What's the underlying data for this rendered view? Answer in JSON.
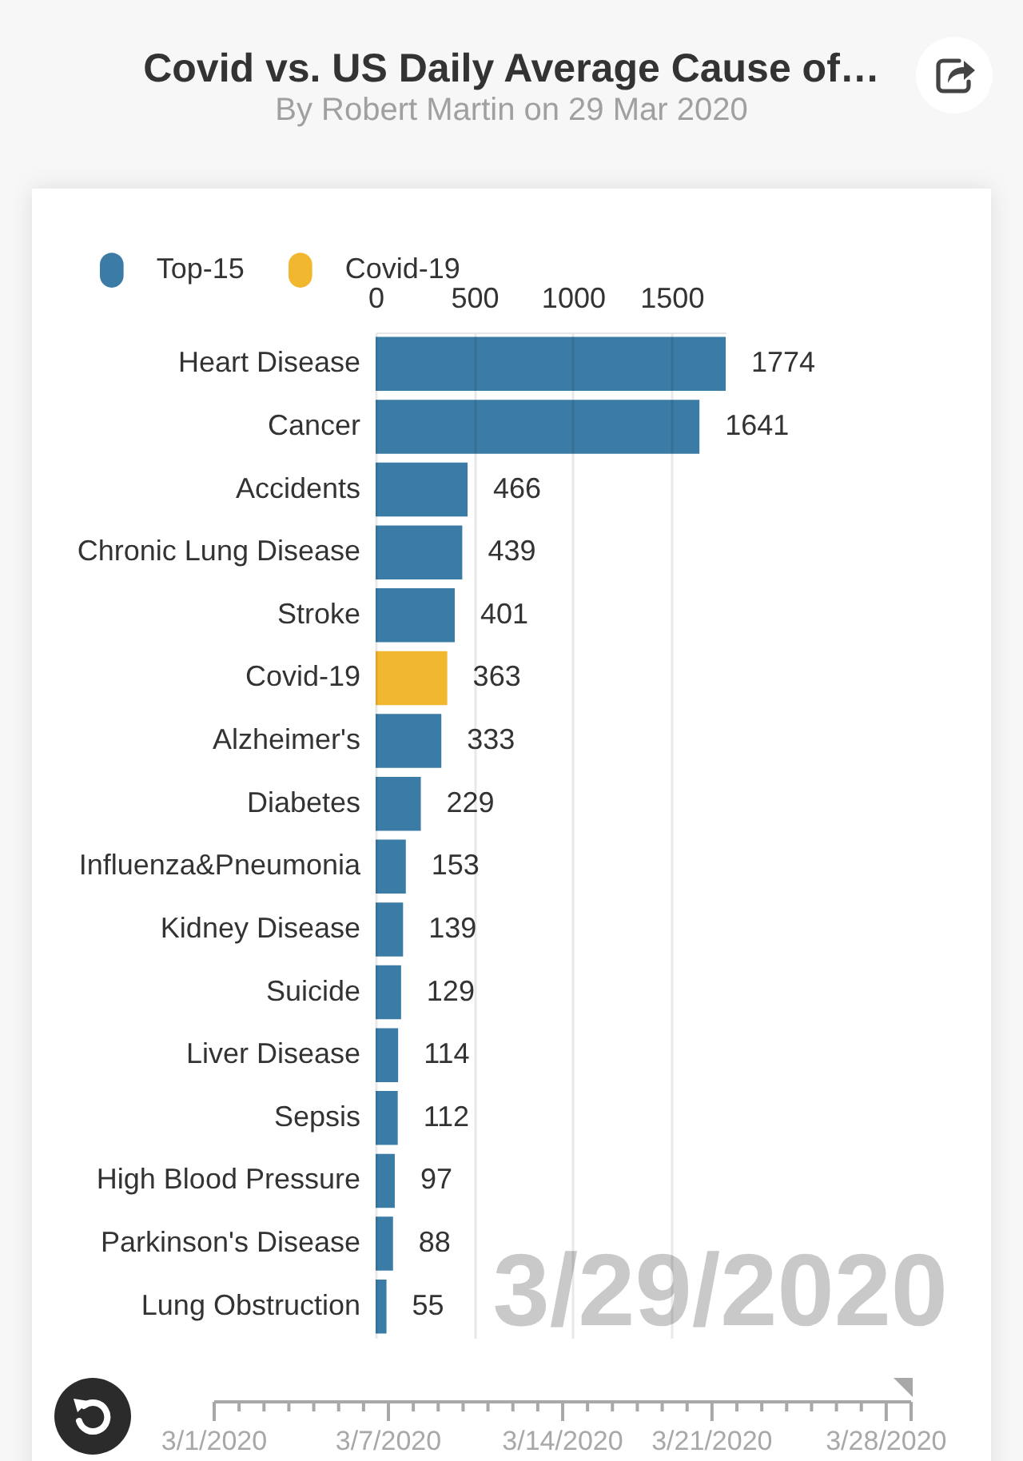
{
  "chart_data": [
    {
      "type": "bar",
      "title": "Covid vs. US Daily Average Cause of…",
      "subtitle": "By Robert Martin on 29 Mar 2020",
      "orientation": "horizontal",
      "categories": [
        "Heart Disease",
        "Cancer",
        "Accidents",
        "Chronic Lung Disease",
        "Stroke",
        "Covid-19",
        "Alzheimer's",
        "Diabetes",
        "Influenza&Pneumonia",
        "Kidney Disease",
        "Suicide",
        "Liver Disease",
        "Sepsis",
        "High Blood Pressure",
        "Parkinson's Disease",
        "Lung Obstruction"
      ],
      "series": [
        {
          "name": "Top-15",
          "color": "#3b7ca6",
          "values": [
            1774,
            1641,
            466,
            439,
            401,
            null,
            333,
            229,
            153,
            139,
            129,
            114,
            112,
            97,
            88,
            55
          ]
        },
        {
          "name": "Covid-19",
          "color": "#f0b72f",
          "values": [
            null,
            null,
            null,
            null,
            null,
            363,
            null,
            null,
            null,
            null,
            null,
            null,
            null,
            null,
            null,
            null
          ]
        }
      ],
      "xlim": [
        0,
        1774
      ],
      "xticks": [
        0,
        500,
        1000,
        1500
      ],
      "grid": "x",
      "legend": "top left",
      "data_labels": true,
      "annotations": [
        "3/29/2020"
      ]
    },
    {
      "type": "other",
      "annotations": [
        "3/1/2020",
        "3/7/2020",
        "3/14/2020",
        "3/21/2020",
        "3/28/2020"
      ]
    }
  ]
}
